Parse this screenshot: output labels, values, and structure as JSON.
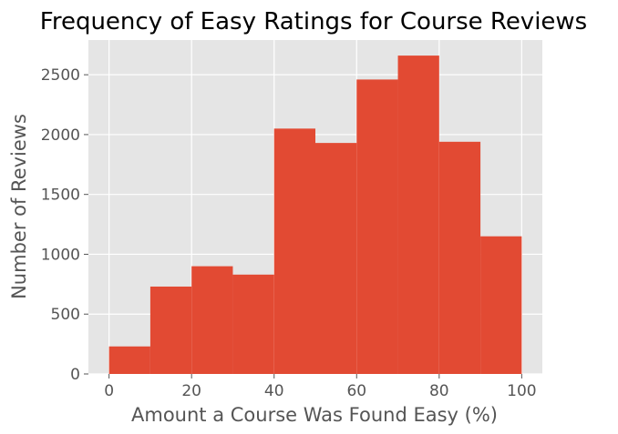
{
  "chart_data": {
    "type": "bar",
    "title": "Frequency of Easy Ratings for Course Reviews",
    "xlabel": "Amount a Course Was Found Easy (%)",
    "ylabel": "Number of Reviews",
    "bins": [
      {
        "x0": 0,
        "x1": 10,
        "value": 230
      },
      {
        "x0": 10,
        "x1": 20,
        "value": 730
      },
      {
        "x0": 20,
        "x1": 30,
        "value": 900
      },
      {
        "x0": 30,
        "x1": 40,
        "value": 830
      },
      {
        "x0": 40,
        "x1": 50,
        "value": 2050
      },
      {
        "x0": 50,
        "x1": 60,
        "value": 1930
      },
      {
        "x0": 60,
        "x1": 70,
        "value": 2460
      },
      {
        "x0": 70,
        "x1": 80,
        "value": 2660
      },
      {
        "x0": 80,
        "x1": 90,
        "value": 1940
      },
      {
        "x0": 90,
        "x1": 100,
        "value": 1150
      }
    ],
    "xlim": [
      -5,
      105
    ],
    "ylim": [
      0,
      2790
    ],
    "xticks": [
      0,
      20,
      40,
      60,
      80,
      100
    ],
    "yticks": [
      0,
      500,
      1000,
      1500,
      2000,
      2500
    ],
    "grid": true,
    "colors": {
      "bar": "#E24A33",
      "plot_background": "#E5E5E5",
      "grid": "#FFFFFF"
    }
  }
}
